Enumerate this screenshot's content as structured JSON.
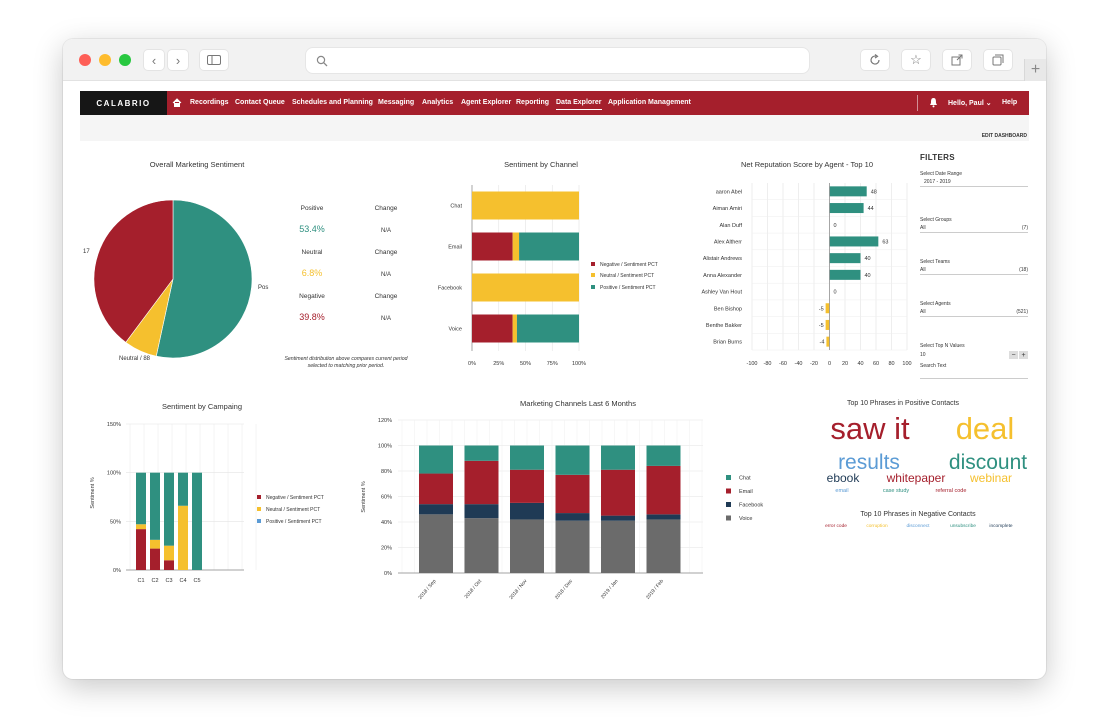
{
  "nav": {
    "brand": "CALABRIO",
    "items": [
      "Recordings",
      "Contact Queue",
      "Schedules and Planning",
      "Messaging",
      "Analytics",
      "Agent Explorer",
      "Reporting",
      "Data Explorer",
      "Application Management"
    ],
    "active": "Data Explorer",
    "user": "Hello, Paul",
    "help": "Help"
  },
  "toolbar": {
    "edit_dashboard": "EDIT DASHBOARD"
  },
  "colors": {
    "negative": "#a51f2c",
    "neutral": "#f5c02e",
    "positive": "#2f9080",
    "facebook": "#1f3a55",
    "voice": "#6b6b6b",
    "nav": "#a51f2c"
  },
  "sentiment_overview": {
    "title": "Overall Marketing Sentiment",
    "pie_labels": {
      "left": "17",
      "right": "Pos",
      "bottom": "Neutral / 88"
    },
    "stats": [
      {
        "label": "Positive",
        "value": "53.4%",
        "change_label": "Change",
        "change": "N/A"
      },
      {
        "label": "Neutral",
        "value": "6.8%",
        "change_label": "Change",
        "change": "N/A"
      },
      {
        "label": "Negative",
        "value": "39.8%",
        "change_label": "Change",
        "change": "N/A"
      }
    ],
    "note_line1": "Sentiment distribution above compares current period",
    "note_line2": "selected to matching prior period."
  },
  "legend": {
    "negative": "Negative / Sentiment PCT",
    "neutral": "Neutral / Sentiment PCT",
    "positive": "Positive / Sentiment PCT"
  },
  "filters": {
    "title": "FILTERS",
    "date_label": "Select Date Range",
    "date_value": "2017 - 2019",
    "groups_label": "Select Groups",
    "groups_value": "All",
    "groups_count": "(7)",
    "teams_label": "Select Teams",
    "teams_value": "All",
    "teams_count": "(18)",
    "agents_label": "Select Agents",
    "agents_value": "All",
    "agents_count": "(521)",
    "topn_label": "Select Top N Values",
    "topn_value": "10",
    "search_label": "Search Text"
  },
  "word_clouds": {
    "positive_title": "Top 10 Phrases in Positive Contacts",
    "positive_words": [
      {
        "text": "saw it",
        "color": "#a51f2c"
      },
      {
        "text": "deal",
        "color": "#f5c02e"
      },
      {
        "text": "results",
        "color": "#5b9bd5"
      },
      {
        "text": "discount",
        "color": "#2f9080"
      },
      {
        "text": "ebook",
        "color": "#1f3a55"
      },
      {
        "text": "whitepaper",
        "color": "#a51f2c"
      },
      {
        "text": "webinar",
        "color": "#f5c02e"
      },
      {
        "text": "email",
        "color": "#5b9bd5"
      },
      {
        "text": "case study",
        "color": "#2f9080"
      },
      {
        "text": "referral code",
        "color": "#a51f2c"
      }
    ],
    "negative_title": "Top 10 Phrases in Negative Contacts",
    "negative_words": [
      {
        "text": "error code",
        "color": "#a51f2c"
      },
      {
        "text": "corruption",
        "color": "#f5c02e"
      },
      {
        "text": "disconnect",
        "color": "#5b9bd5"
      },
      {
        "text": "unsubscribe",
        "color": "#2f9080"
      },
      {
        "text": "incomplete",
        "color": "#1f3a55"
      }
    ]
  },
  "chart_data": [
    {
      "type": "pie",
      "title": "Overall Marketing Sentiment",
      "slices": [
        {
          "label": "Positive",
          "value": 53.4
        },
        {
          "label": "Neutral",
          "value": 6.8
        },
        {
          "label": "Negative",
          "value": 39.8
        }
      ]
    },
    {
      "type": "bar",
      "orientation": "horizontal-stacked",
      "title": "Sentiment by Channel",
      "categories": [
        "Chat",
        "Email",
        "Facebook",
        "Voice"
      ],
      "series": [
        {
          "name": "Negative / Sentiment PCT",
          "values": [
            0,
            38,
            0,
            38
          ]
        },
        {
          "name": "Neutral / Sentiment PCT",
          "values": [
            100,
            6,
            100,
            4
          ]
        },
        {
          "name": "Positive / Sentiment PCT",
          "values": [
            0,
            56,
            0,
            58
          ]
        }
      ],
      "x_ticks": [
        "0%",
        "25%",
        "50%",
        "75%",
        "100%"
      ],
      "xlim": [
        0,
        100
      ]
    },
    {
      "type": "bar",
      "orientation": "horizontal",
      "title": "Net Reputation Score by Agent - Top 10",
      "categories": [
        "aaron Abel",
        "Aiman Amiri",
        "Alan Duff",
        "Alex Altherr",
        "Alistair Andrews",
        "Anna Alexander",
        "Ashley Van Hout",
        "Ben Bishop",
        "Benthe Bakker",
        "Brian Burns"
      ],
      "values": [
        48,
        44,
        0,
        63,
        40,
        40,
        0,
        -5,
        -5,
        -4
      ],
      "x_ticks": [
        "-100",
        "-80",
        "-60",
        "-40",
        "-20",
        "0",
        "20",
        "40",
        "60",
        "80",
        "100"
      ],
      "xlim": [
        -100,
        100
      ]
    },
    {
      "type": "bar",
      "orientation": "vertical-stacked",
      "title": "Sentiment by Campaing",
      "ylabel": "Sentiment %",
      "categories": [
        "C1",
        "C2",
        "C3",
        "C4",
        "C5"
      ],
      "series": [
        {
          "name": "Negative / Sentiment PCT",
          "values": [
            42,
            22,
            10,
            0,
            0
          ]
        },
        {
          "name": "Neutral / Sentiment PCT",
          "values": [
            5,
            9,
            15,
            66,
            0
          ]
        },
        {
          "name": "Positive / Sentiment PCT",
          "values": [
            53,
            69,
            75,
            34,
            100
          ]
        }
      ],
      "y_ticks": [
        "0%",
        "50%",
        "100%",
        "150%"
      ],
      "ylim": [
        0,
        150
      ]
    },
    {
      "type": "bar",
      "orientation": "vertical-stacked",
      "title": "Marketing Channels Last 6 Months",
      "ylabel": "Sentiment %",
      "categories": [
        "2018 / Sep",
        "2018 / Oct",
        "2018 / Nov",
        "2018 / Dec",
        "2019 / Jan",
        "2019 / Feb"
      ],
      "series": [
        {
          "name": "Voice",
          "values": [
            46,
            43,
            42,
            41,
            41,
            42
          ]
        },
        {
          "name": "Facebook",
          "values": [
            8,
            11,
            13,
            6,
            4,
            4
          ]
        },
        {
          "name": "Email",
          "values": [
            24,
            34,
            26,
            30,
            36,
            38
          ]
        },
        {
          "name": "Chat",
          "values": [
            22,
            12,
            19,
            23,
            19,
            16
          ]
        }
      ],
      "y_ticks": [
        "0%",
        "20%",
        "40%",
        "60%",
        "80%",
        "100%",
        "120%"
      ],
      "ylim": [
        0,
        120
      ]
    }
  ]
}
